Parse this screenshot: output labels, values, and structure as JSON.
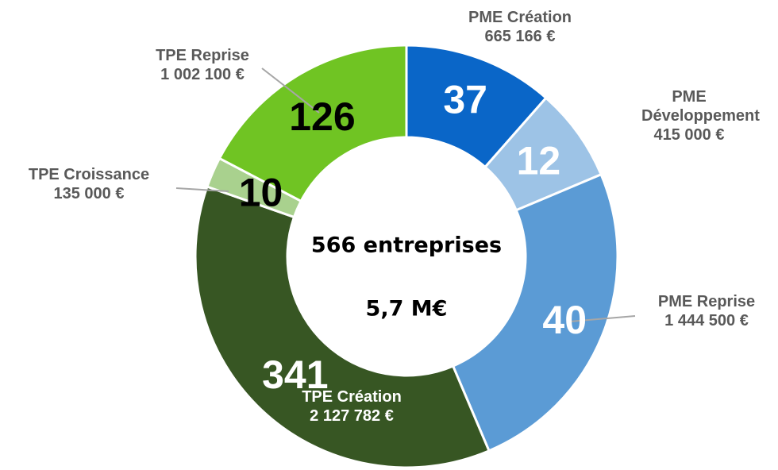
{
  "chart_data": {
    "type": "donut",
    "categories": [
      "PME Création",
      "PME Développement",
      "PME Reprise",
      "TPE Création",
      "TPE Croissance",
      "TPE Reprise"
    ],
    "values": [
      665166,
      415000,
      1444500,
      2127782,
      135000,
      1002100
    ],
    "value_labels": [
      "665 166 €",
      "415 000 €",
      "1 444 500 €",
      "2 127 782 €",
      "135 000 €",
      "1 002 100 €"
    ],
    "counts": [
      37,
      12,
      40,
      341,
      10,
      126
    ],
    "colors": [
      "#0a66c8",
      "#9dc3e6",
      "#5b9bd5",
      "#375623",
      "#a9d18e",
      "#70c423"
    ],
    "count_colors": [
      "#ffffff",
      "#ffffff",
      "#ffffff",
      "#ffffff",
      "#000000",
      "#000000"
    ],
    "center_texts": [
      "566 entreprises",
      "5,7 M€"
    ]
  }
}
